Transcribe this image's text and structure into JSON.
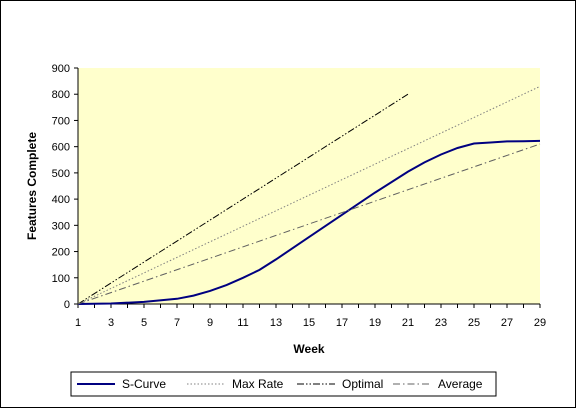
{
  "chart_data": {
    "type": "line",
    "title": "",
    "xlabel": "Week",
    "ylabel": "Features Complete",
    "xlim": [
      1,
      29
    ],
    "ylim": [
      0,
      900
    ],
    "x_ticks": [
      1,
      3,
      5,
      7,
      9,
      11,
      13,
      15,
      17,
      19,
      21,
      23,
      25,
      27,
      29
    ],
    "y_ticks": [
      0,
      100,
      200,
      300,
      400,
      500,
      600,
      700,
      800,
      900
    ],
    "x_tick_labels": [
      "1",
      "3",
      "5",
      "7",
      "9",
      "11",
      "13",
      "15",
      "17",
      "19",
      "21",
      "23",
      "25",
      "27",
      "29"
    ],
    "y_tick_labels": [
      "0",
      "100",
      "200",
      "300",
      "400",
      "500",
      "600",
      "700",
      "800",
      "900"
    ],
    "grid": false,
    "plot_background": "#FFFFCC",
    "legend_position": "bottom",
    "series": [
      {
        "name": "S-Curve",
        "color": "#000080",
        "dash": "solid",
        "points": [
          [
            1,
            0
          ],
          [
            3,
            2
          ],
          [
            5,
            8
          ],
          [
            7,
            20
          ],
          [
            8,
            32
          ],
          [
            9,
            50
          ],
          [
            10,
            72
          ],
          [
            11,
            100
          ],
          [
            12,
            130
          ],
          [
            13,
            170
          ],
          [
            15,
            255
          ],
          [
            17,
            340
          ],
          [
            19,
            425
          ],
          [
            21,
            505
          ],
          [
            22,
            540
          ],
          [
            23,
            570
          ],
          [
            24,
            595
          ],
          [
            25,
            612
          ],
          [
            26,
            616
          ],
          [
            27,
            620
          ],
          [
            28,
            621
          ],
          [
            29,
            622
          ]
        ]
      },
      {
        "name": "Max Rate",
        "color": "#808080",
        "dash": "dotted",
        "points": [
          [
            1,
            0
          ],
          [
            29,
            830
          ]
        ]
      },
      {
        "name": "Optimal",
        "color": "#000000",
        "dash": "dash-dot-dot",
        "points": [
          [
            1,
            0
          ],
          [
            21,
            800
          ]
        ]
      },
      {
        "name": "Average",
        "color": "#606060",
        "dash": "dash-dot",
        "points": [
          [
            1,
            0
          ],
          [
            29,
            610
          ]
        ]
      }
    ]
  }
}
